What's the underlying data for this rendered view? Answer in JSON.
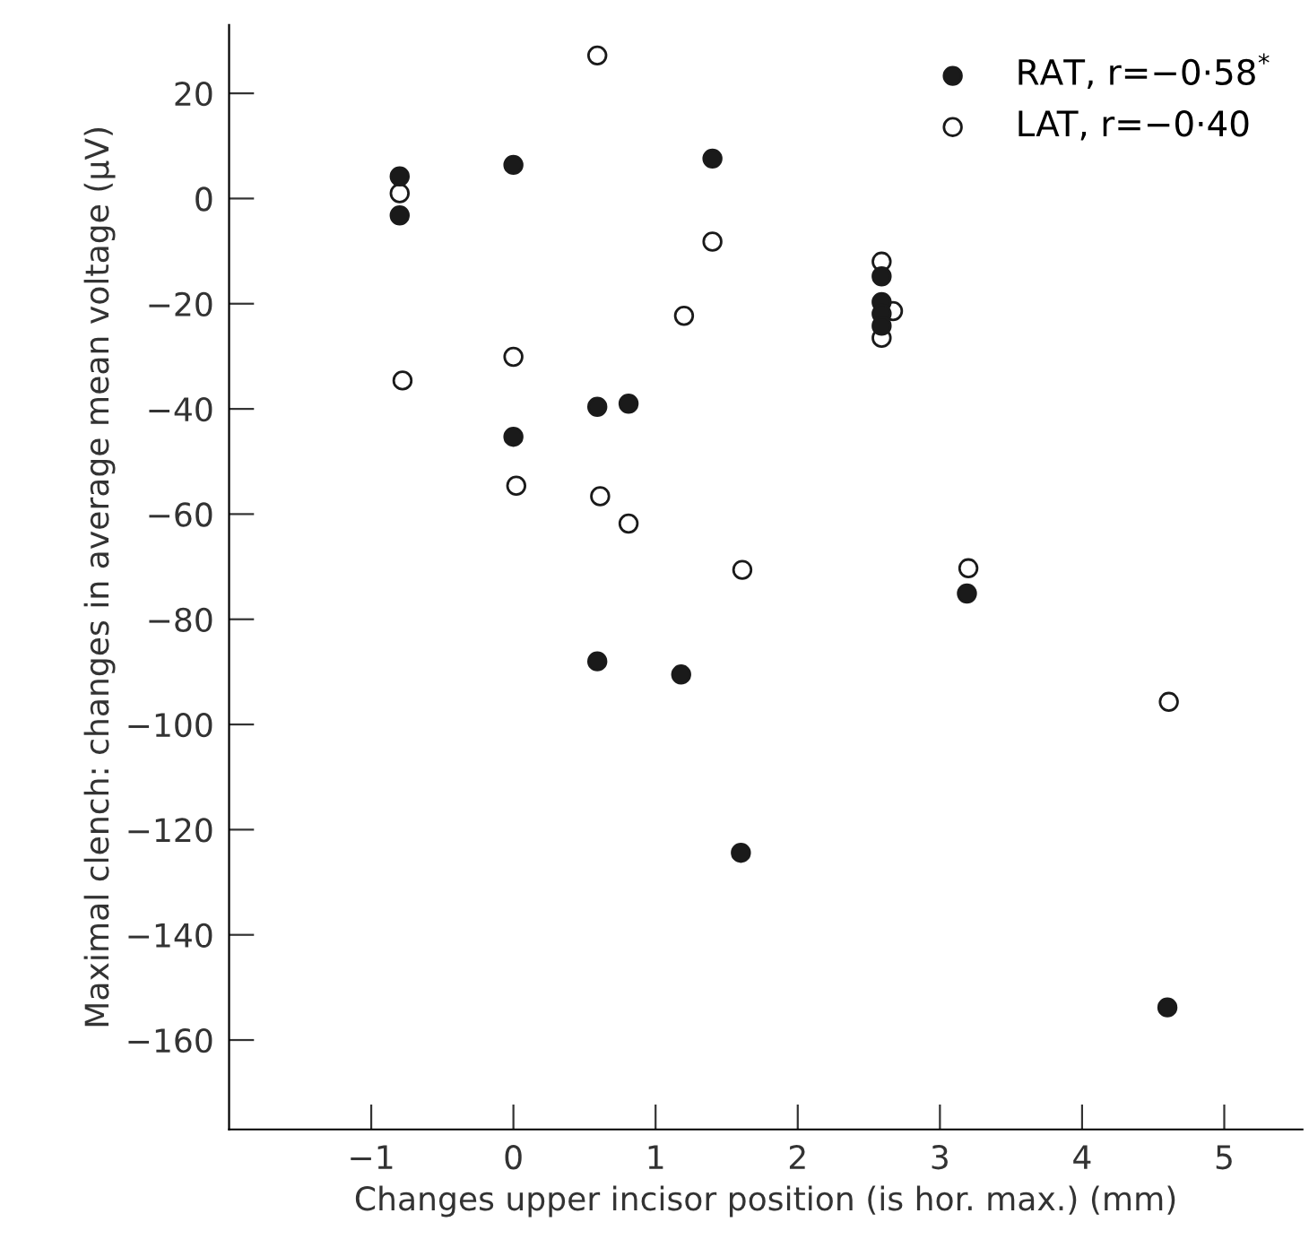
{
  "chart_data": {
    "type": "scatter",
    "xlabel": "Changes upper incisor position (is hor. max.) (mm)",
    "ylabel": "Maximal clench: changes in average mean voltage (μV)",
    "xlim": [
      -2,
      5.55
    ],
    "ylim": [
      -177,
      33
    ],
    "xticks": [
      {
        "value": -1,
        "label": "−1"
      },
      0,
      1,
      2,
      3,
      4,
      5
    ],
    "yticks": [
      20,
      0,
      {
        "value": -20,
        "label": "−20"
      },
      {
        "value": -40,
        "label": "−40"
      },
      {
        "value": -60,
        "label": "−60"
      },
      {
        "value": -80,
        "label": "−80"
      },
      {
        "value": -100,
        "label": "−100"
      },
      {
        "value": -120,
        "label": "−120"
      },
      {
        "value": -140,
        "label": "−140"
      },
      {
        "value": -160,
        "label": "−160"
      }
    ],
    "marker": "circle",
    "grid": false,
    "legend": "top right",
    "series": [
      {
        "name": "RAT, r=−0·58$^{*}$",
        "color": "#1a1a1a",
        "x": [
          -0.8,
          -0.8,
          0,
          0,
          0.59,
          0.81,
          1.4,
          0.59,
          1.18,
          1.6,
          2.59,
          2.59,
          2.59,
          2.59,
          3.19,
          4.6
        ],
        "values": [
          4.2,
          -3.2,
          6.4,
          -45.3,
          -39.6,
          -39.0,
          7.6,
          -88.0,
          -90.5,
          -124.4,
          -14.8,
          -19.7,
          -21.9,
          -24.2,
          -75.1,
          -153.8
        ]
      },
      {
        "name": "LAT, r=−0·40",
        "color": "#ffffff",
        "x": [
          -0.8,
          -0.78,
          0,
          0.02,
          0.59,
          0.61,
          0.81,
          1.4,
          1.2,
          1.61,
          2.59,
          2.67,
          2.59,
          3.2,
          4.61
        ],
        "values": [
          1.0,
          -34.6,
          -30.1,
          -54.6,
          27.2,
          -56.6,
          -61.8,
          -8.2,
          -22.3,
          -70.6,
          -12.0,
          -21.4,
          -26.5,
          -70.3,
          -95.7
        ]
      }
    ]
  }
}
